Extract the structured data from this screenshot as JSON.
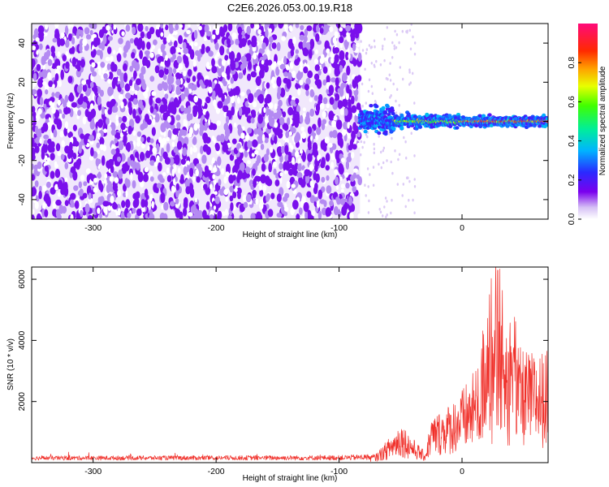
{
  "figure": {
    "title": "C2E6.2026.053.00.19.R18"
  },
  "chart_data": [
    {
      "type": "heatmap",
      "name": "spectrogram",
      "xlabel": "Height of straight line (km)",
      "ylabel": "Frequency (Hz)",
      "xlim": [
        -350,
        70
      ],
      "ylim": [
        -50,
        50
      ],
      "xticks": [
        -300,
        -200,
        -100,
        0
      ],
      "yticks": [
        -40,
        -20,
        0,
        20,
        40
      ],
      "colorbar": {
        "label": "Normalized spectral amplitude",
        "range": [
          0.0,
          1.0
        ],
        "ticks": [
          0.0,
          0.2,
          0.4,
          0.6,
          0.8
        ],
        "colormap": "rainbow (white-purple-blue-cyan-green-yellow-red-magenta)"
      },
      "regions": [
        {
          "x_range": [
            -350,
            -83
          ],
          "description": "broadband noise across all frequencies",
          "amplitude": 0.05
        },
        {
          "x_range": [
            -83,
            -55
          ],
          "description": "signal near 0 Hz, spread +/-8 Hz",
          "center_hz": 1,
          "amplitude": 0.3
        },
        {
          "x_range": [
            -55,
            0
          ],
          "description": "signal near 0 Hz, narrow",
          "center_hz": 0,
          "amplitude": 0.75
        },
        {
          "x_range": [
            0,
            70
          ],
          "description": "strong narrow signal at 0 Hz",
          "center_hz": 0,
          "amplitude": 0.95
        }
      ]
    },
    {
      "type": "line",
      "name": "snr",
      "xlabel": "Height of straight line (km)",
      "ylabel": "SNR (10 * v/v)",
      "xlim": [
        -350,
        70
      ],
      "ylim": [
        0,
        6400
      ],
      "xticks": [
        -300,
        -200,
        -100,
        0
      ],
      "yticks": [
        2000,
        4000,
        6000
      ],
      "color": "#f0302a",
      "envelope": [
        {
          "x": -350,
          "y": 180
        },
        {
          "x": -100,
          "y": 200
        },
        {
          "x": -70,
          "y": 250
        },
        {
          "x": -55,
          "y": 900
        },
        {
          "x": -50,
          "y": 1200
        },
        {
          "x": -40,
          "y": 700
        },
        {
          "x": -30,
          "y": 300
        },
        {
          "x": -25,
          "y": 1300
        },
        {
          "x": -10,
          "y": 1700
        },
        {
          "x": 0,
          "y": 2100
        },
        {
          "x": 10,
          "y": 2600
        },
        {
          "x": 20,
          "y": 3200
        },
        {
          "x": 27,
          "y": 4300
        },
        {
          "x": 40,
          "y": 3400
        },
        {
          "x": 55,
          "y": 3150
        },
        {
          "x": 70,
          "y": 3200
        }
      ],
      "peak": {
        "x": 29,
        "y": 6300
      }
    }
  ]
}
